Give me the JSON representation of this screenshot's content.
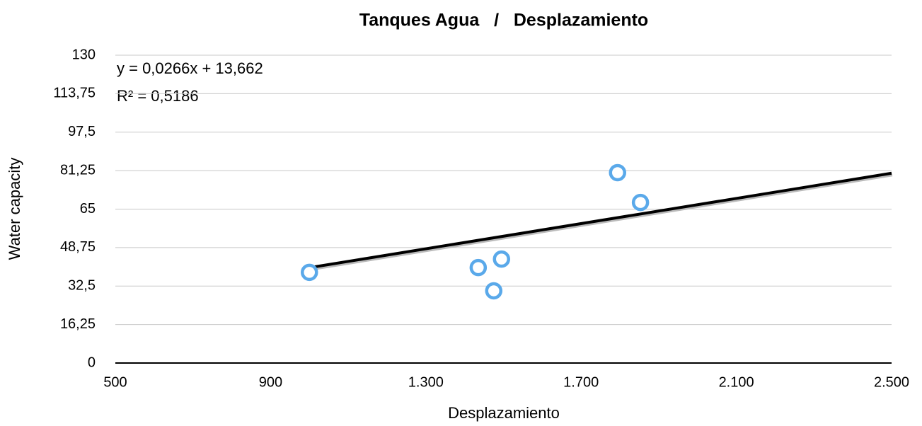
{
  "chart_data": {
    "type": "scatter",
    "title": "Tanques Agua   /   Desplazamiento",
    "x_label": "Desplazamiento",
    "y_label": "Water capacity",
    "series": [
      {
        "color": "#5aa9ea",
        "x": [
          1000,
          1435,
          1495,
          1475,
          1794,
          1853
        ],
        "values": [
          38.3,
          40.3,
          43.9,
          30.5,
          80.4,
          67.8
        ]
      }
    ],
    "trendline": {
      "slope": 0.0266,
      "intercept": 13.662,
      "color": "#000000",
      "equation": "y = 0,0266x + 13,662",
      "r_squared": "R² = 0,5186"
    },
    "xlim": [
      500,
      2500
    ],
    "xticks": [
      500,
      900,
      {
        "value": 1300,
        "label": "1.300"
      },
      {
        "value": 1700,
        "label": "1.700"
      },
      {
        "value": 2100,
        "label": "2.100"
      },
      {
        "value": 2500,
        "label": "2.500"
      }
    ],
    "ylim": [
      0,
      130
    ],
    "yticks": [
      0,
      {
        "value": 16.25,
        "label": "16,25"
      },
      {
        "value": 32.5,
        "label": "32,5"
      },
      {
        "value": 48.75,
        "label": "48,75"
      },
      65,
      {
        "value": 81.25,
        "label": "81,25"
      },
      {
        "value": 97.5,
        "label": "97,5"
      },
      {
        "value": 113.75,
        "label": "113,75"
      },
      130
    ],
    "grid": true
  }
}
